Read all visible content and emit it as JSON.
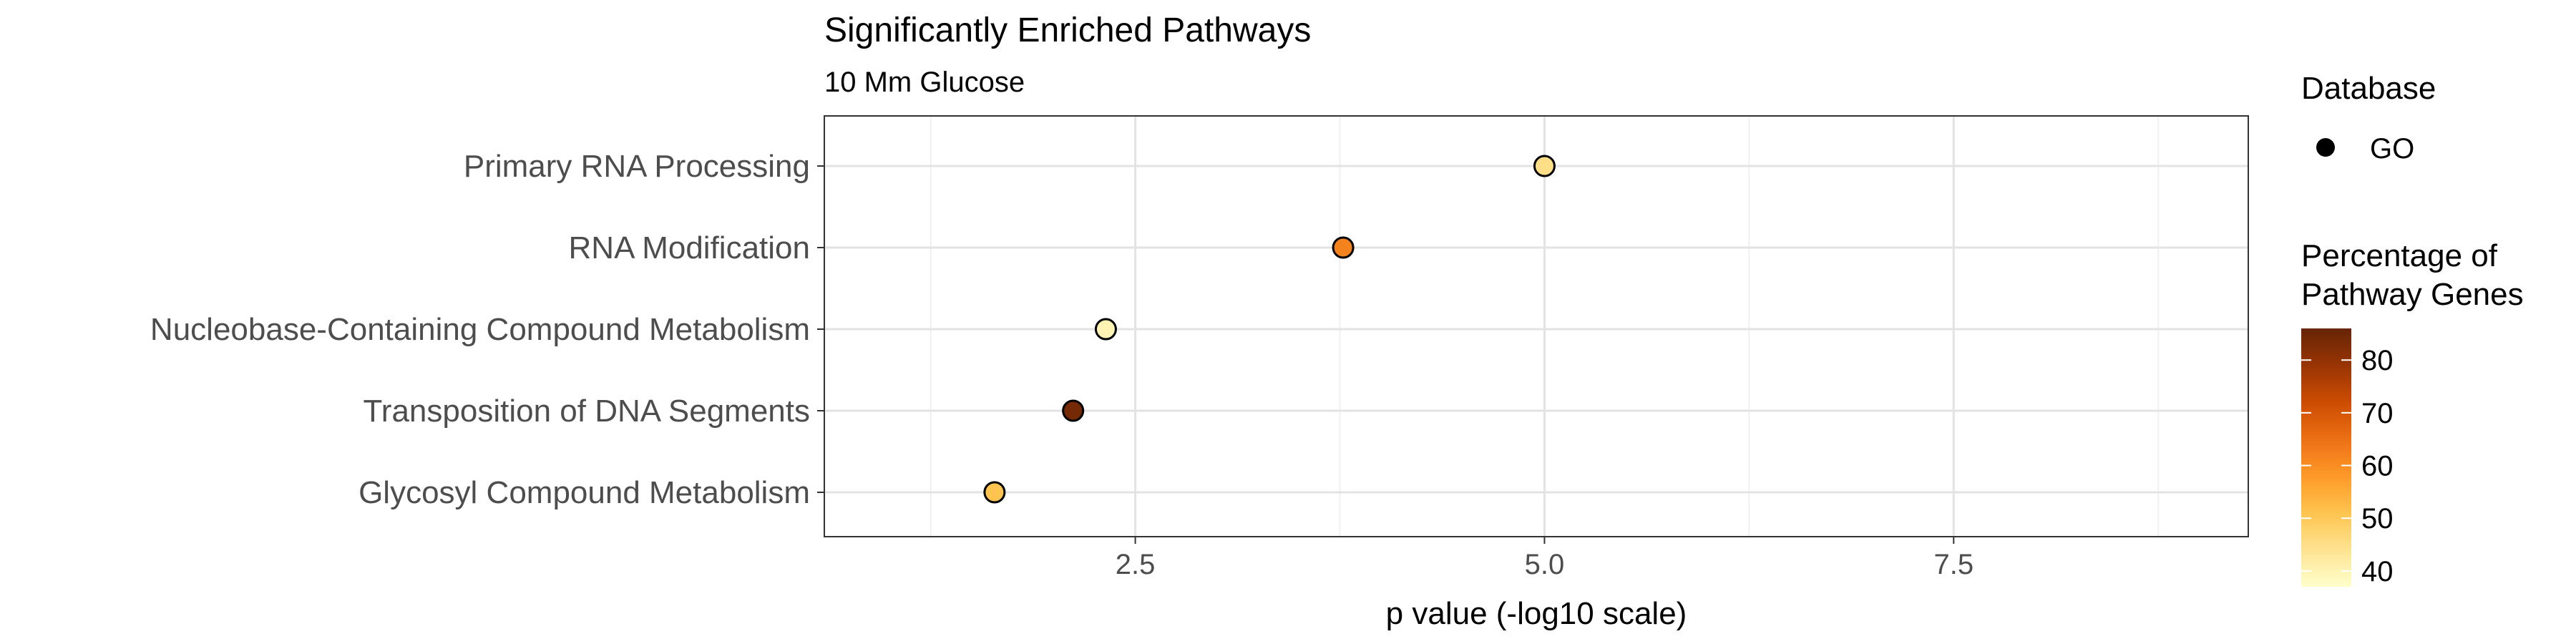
{
  "chart_data": {
    "type": "scatter",
    "title": "Significantly Enriched Pathways",
    "subtitle": "10 Mm Glucose",
    "xlabel": "p value (-log10 scale)",
    "ylabel": "",
    "xlim": [
      0.6,
      9.3
    ],
    "xticks": [
      2.5,
      5.0,
      7.5
    ],
    "xtick_labels": [
      "2.5",
      "5.0",
      "7.5"
    ],
    "grid": true,
    "categories": [
      "Primary RNA Processing",
      "RNA Modification",
      "Nucleobase-Containing Compound Metabolism",
      "Transposition of DNA Segments",
      "Glycosyl Compound Metabolism"
    ],
    "points": [
      {
        "category": "Primary RNA Processing",
        "x": 5.0,
        "percentage": 45
      },
      {
        "category": "RNA Modification",
        "x": 3.77,
        "percentage": 62
      },
      {
        "category": "Nucleobase-Containing Compound Metabolism",
        "x": 2.32,
        "percentage": 40
      },
      {
        "category": "Transposition of DNA Segments",
        "x": 2.12,
        "percentage": 84
      },
      {
        "category": "Glycosyl Compound Metabolism",
        "x": 1.64,
        "percentage": 51
      }
    ],
    "legend": {
      "placement": "right",
      "shape_title": "Database",
      "shape_entries": [
        "GO"
      ],
      "color_title_lines": [
        "Percentage of",
        "Pathway Genes"
      ],
      "color_range": [
        37,
        86
      ],
      "color_ticks": [
        40,
        50,
        60,
        70,
        80
      ],
      "color_tick_labels": [
        "40",
        "50",
        "60",
        "70",
        "80"
      ],
      "colors": [
        "#ffffcc",
        "#fee391",
        "#fec44f",
        "#fe9929",
        "#ec7014",
        "#cc4c02",
        "#993404",
        "#662506"
      ]
    }
  }
}
